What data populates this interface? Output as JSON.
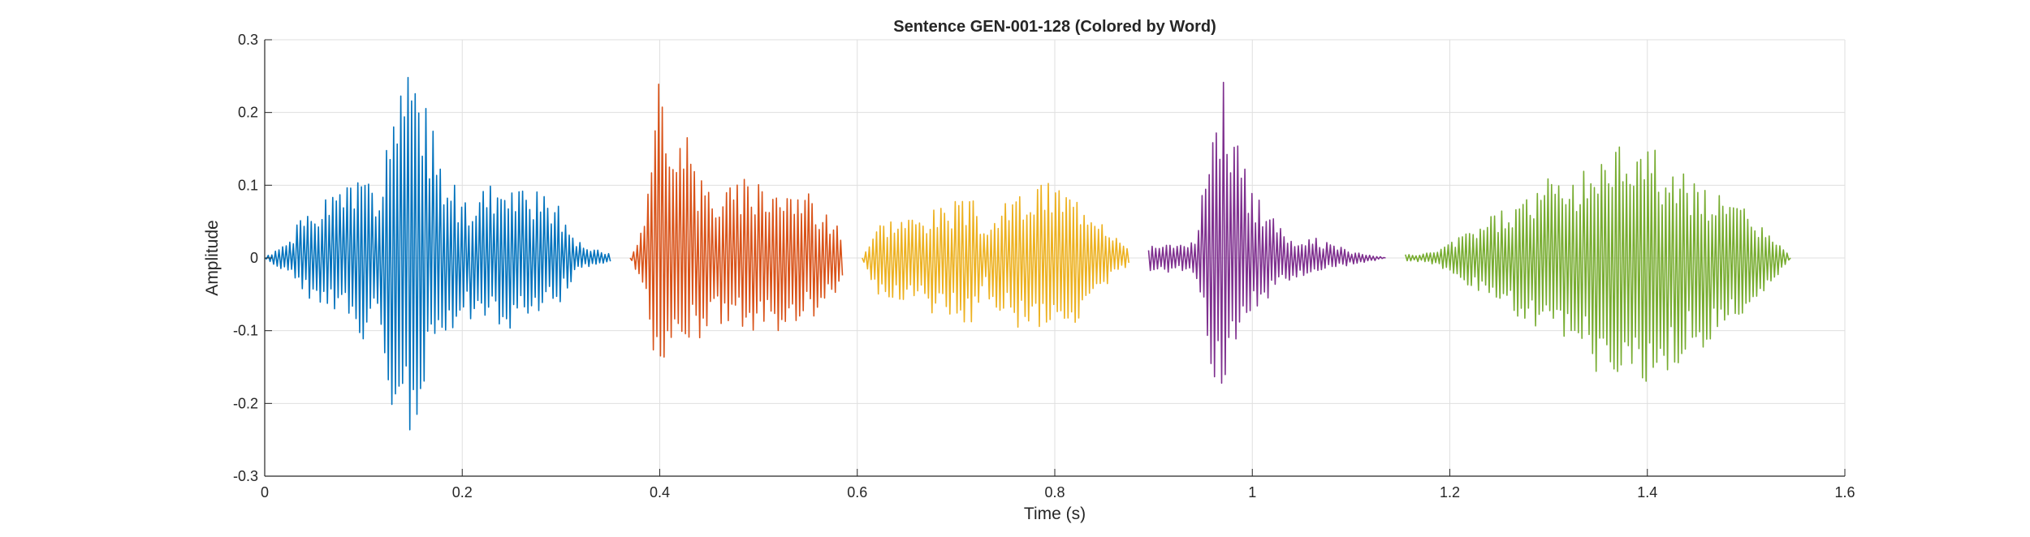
{
  "chart_data": {
    "type": "line",
    "title": "Sentence GEN-001-128 (Colored by Word)",
    "xlabel": "Time (s)",
    "ylabel": "Amplitude",
    "xlim": [
      0,
      1.6
    ],
    "ylim": [
      -0.3,
      0.3
    ],
    "xticks": [
      0,
      0.2,
      0.4,
      0.6,
      0.8,
      1.0,
      1.2,
      1.4,
      1.6
    ],
    "xtick_labels": [
      "0",
      "0.2",
      "0.4",
      "0.6",
      "0.8",
      "1",
      "1.2",
      "1.4",
      "1.6"
    ],
    "yticks": [
      -0.3,
      -0.2,
      -0.1,
      0,
      0.1,
      0.2,
      0.3
    ],
    "ytick_labels": [
      "-0.3",
      "-0.2",
      "-0.1",
      "0",
      "0.1",
      "0.2",
      "0.3"
    ],
    "grid": true,
    "series": [
      {
        "color": "#0072BD",
        "x": [
          0.0,
          0.02,
          0.04,
          0.06,
          0.08,
          0.1,
          0.115,
          0.125,
          0.135,
          0.145,
          0.155,
          0.165,
          0.18,
          0.2,
          0.22,
          0.24,
          0.26,
          0.28,
          0.3,
          0.32,
          0.34,
          0.35
        ],
        "upper": [
          0.0,
          0.02,
          0.06,
          0.08,
          0.1,
          0.12,
          0.09,
          0.16,
          0.22,
          0.26,
          0.24,
          0.2,
          0.15,
          0.08,
          0.1,
          0.1,
          0.1,
          0.09,
          0.07,
          0.02,
          0.01,
          0.005
        ],
        "lower": [
          0.0,
          -0.02,
          -0.05,
          -0.07,
          -0.09,
          -0.12,
          -0.08,
          -0.2,
          -0.26,
          -0.25,
          -0.22,
          -0.18,
          -0.15,
          -0.08,
          -0.1,
          -0.1,
          -0.1,
          -0.08,
          -0.06,
          -0.015,
          -0.01,
          -0.005
        ]
      },
      {
        "color": "#D95319",
        "x": [
          0.37,
          0.385,
          0.395,
          0.4,
          0.41,
          0.42,
          0.44,
          0.46,
          0.48,
          0.5,
          0.52,
          0.54,
          0.56,
          0.575,
          0.585
        ],
        "upper": [
          0.0,
          0.06,
          0.2,
          0.27,
          0.24,
          0.2,
          0.12,
          0.1,
          0.11,
          0.12,
          0.11,
          0.1,
          0.08,
          0.06,
          0.03
        ],
        "lower": [
          0.0,
          -0.05,
          -0.14,
          -0.16,
          -0.15,
          -0.14,
          -0.12,
          -0.1,
          -0.1,
          -0.11,
          -0.1,
          -0.09,
          -0.08,
          -0.06,
          -0.03
        ]
      },
      {
        "color": "#EDB120",
        "x": [
          0.605,
          0.62,
          0.64,
          0.66,
          0.68,
          0.7,
          0.72,
          0.73,
          0.745,
          0.76,
          0.78,
          0.8,
          0.82,
          0.84,
          0.86,
          0.875
        ],
        "upper": [
          0.0,
          0.05,
          0.06,
          0.06,
          0.07,
          0.08,
          0.08,
          0.04,
          0.07,
          0.09,
          0.1,
          0.11,
          0.09,
          0.08,
          0.04,
          0.01
        ],
        "lower": [
          0.0,
          -0.05,
          -0.06,
          -0.07,
          -0.08,
          -0.09,
          -0.09,
          -0.05,
          -0.08,
          -0.1,
          -0.1,
          -0.1,
          -0.09,
          -0.07,
          -0.03,
          -0.01
        ]
      },
      {
        "color": "#7E2F8E",
        "x": [
          0.895,
          0.91,
          0.93,
          0.945,
          0.955,
          0.965,
          0.975,
          0.985,
          1.0,
          1.02,
          1.04,
          1.06,
          1.08,
          1.1,
          1.12,
          1.135
        ],
        "upper": [
          0.02,
          0.02,
          0.02,
          0.03,
          0.2,
          0.27,
          0.25,
          0.16,
          0.1,
          0.06,
          0.03,
          0.03,
          0.02,
          0.01,
          0.005,
          0.0
        ],
        "lower": [
          -0.02,
          -0.02,
          -0.02,
          -0.03,
          -0.16,
          -0.22,
          -0.18,
          -0.14,
          -0.08,
          -0.05,
          -0.03,
          -0.02,
          -0.015,
          -0.01,
          -0.005,
          0.0
        ]
      },
      {
        "color": "#77AC30",
        "x": [
          1.155,
          1.17,
          1.185,
          1.2,
          1.22,
          1.24,
          1.26,
          1.28,
          1.3,
          1.32,
          1.34,
          1.36,
          1.38,
          1.4,
          1.42,
          1.44,
          1.46,
          1.48,
          1.5,
          1.52,
          1.54,
          1.545
        ],
        "upper": [
          0.005,
          0.005,
          0.01,
          0.02,
          0.04,
          0.06,
          0.07,
          0.09,
          0.11,
          0.12,
          0.13,
          0.15,
          0.17,
          0.17,
          0.13,
          0.12,
          0.1,
          0.08,
          0.07,
          0.04,
          0.01,
          0.0
        ],
        "lower": [
          -0.005,
          -0.005,
          -0.01,
          -0.02,
          -0.04,
          -0.06,
          -0.08,
          -0.1,
          -0.12,
          -0.14,
          -0.15,
          -0.17,
          -0.19,
          -0.18,
          -0.16,
          -0.14,
          -0.12,
          -0.1,
          -0.08,
          -0.05,
          -0.01,
          0.0
        ]
      }
    ]
  }
}
